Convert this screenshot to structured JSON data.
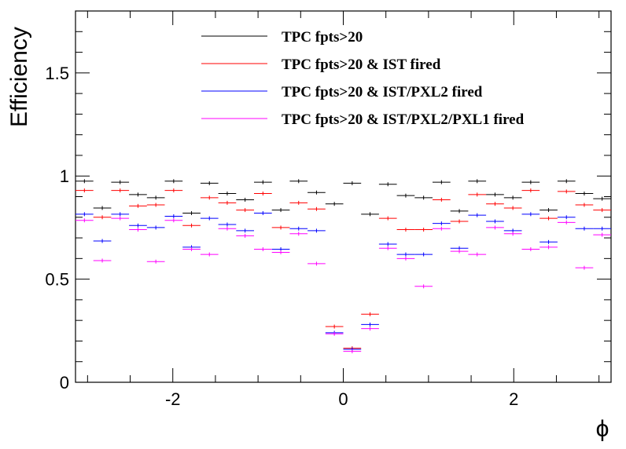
{
  "chart_data": {
    "type": "scatter",
    "xlabel": "ϕ",
    "ylabel": "Efficiency",
    "xlim": [
      -3.14159,
      3.14159
    ],
    "ylim": [
      0,
      1.8
    ],
    "xticks": [
      -2,
      0,
      2
    ],
    "xtick_labels": [
      "-2",
      "0",
      "2"
    ],
    "yticks": [
      0,
      0.5,
      1,
      1.5
    ],
    "ytick_labels": [
      "0",
      "0.5",
      "1",
      "1.5"
    ],
    "bin_centers": [
      -3.0369,
      -2.8274,
      -2.618,
      -2.4086,
      -2.1991,
      -1.9897,
      -1.7802,
      -1.5708,
      -1.3614,
      -1.1519,
      -0.9425,
      -0.733,
      -0.5236,
      -0.3142,
      -0.1047,
      0.1047,
      0.3142,
      0.5236,
      0.733,
      0.9425,
      1.1519,
      1.3614,
      1.5708,
      1.7802,
      1.9897,
      2.1991,
      2.4086,
      2.618,
      2.8274,
      3.0369
    ],
    "bin_half_width": 0.1047,
    "grid": false,
    "legend_position": "top-center",
    "series": [
      {
        "name": "TPC fpts>20",
        "color": "#000000",
        "values": [
          0.975,
          0.845,
          0.97,
          0.91,
          0.895,
          0.975,
          0.82,
          0.965,
          0.915,
          0.885,
          0.97,
          0.835,
          0.975,
          0.92,
          0.865,
          0.965,
          0.815,
          0.96,
          0.905,
          0.895,
          0.97,
          0.83,
          0.975,
          0.91,
          0.895,
          0.97,
          0.835,
          0.975,
          0.915,
          0.89
        ]
      },
      {
        "name": "TPC fpts>20 & IST fired",
        "color": "#ff0000",
        "values": [
          0.93,
          0.8,
          0.93,
          0.855,
          0.86,
          0.93,
          0.76,
          0.895,
          0.87,
          0.835,
          0.915,
          0.75,
          0.87,
          0.84,
          0.27,
          0.165,
          0.33,
          0.795,
          0.74,
          0.74,
          0.885,
          0.78,
          0.91,
          0.865,
          0.845,
          0.93,
          0.795,
          0.925,
          0.86,
          0.835
        ]
      },
      {
        "name": "TPC fpts>20 & IST/PXL2 fired",
        "color": "#0000ff",
        "values": [
          0.815,
          0.685,
          0.815,
          0.76,
          0.75,
          0.805,
          0.655,
          0.795,
          0.765,
          0.735,
          0.82,
          0.645,
          0.745,
          0.735,
          0.24,
          0.16,
          0.28,
          0.67,
          0.62,
          0.62,
          0.77,
          0.65,
          0.81,
          0.78,
          0.735,
          0.815,
          0.68,
          0.8,
          0.745,
          0.745
        ]
      },
      {
        "name": "TPC fpts>20 & IST/PXL2/PXL1 fired",
        "color": "#ff00ff",
        "values": [
          0.785,
          0.59,
          0.795,
          0.74,
          0.585,
          0.785,
          0.645,
          0.62,
          0.745,
          0.71,
          0.645,
          0.63,
          0.72,
          0.575,
          0.235,
          0.15,
          0.26,
          0.65,
          0.6,
          0.465,
          0.745,
          0.635,
          0.62,
          0.75,
          0.72,
          0.645,
          0.655,
          0.775,
          0.555,
          0.715
        ]
      }
    ]
  }
}
